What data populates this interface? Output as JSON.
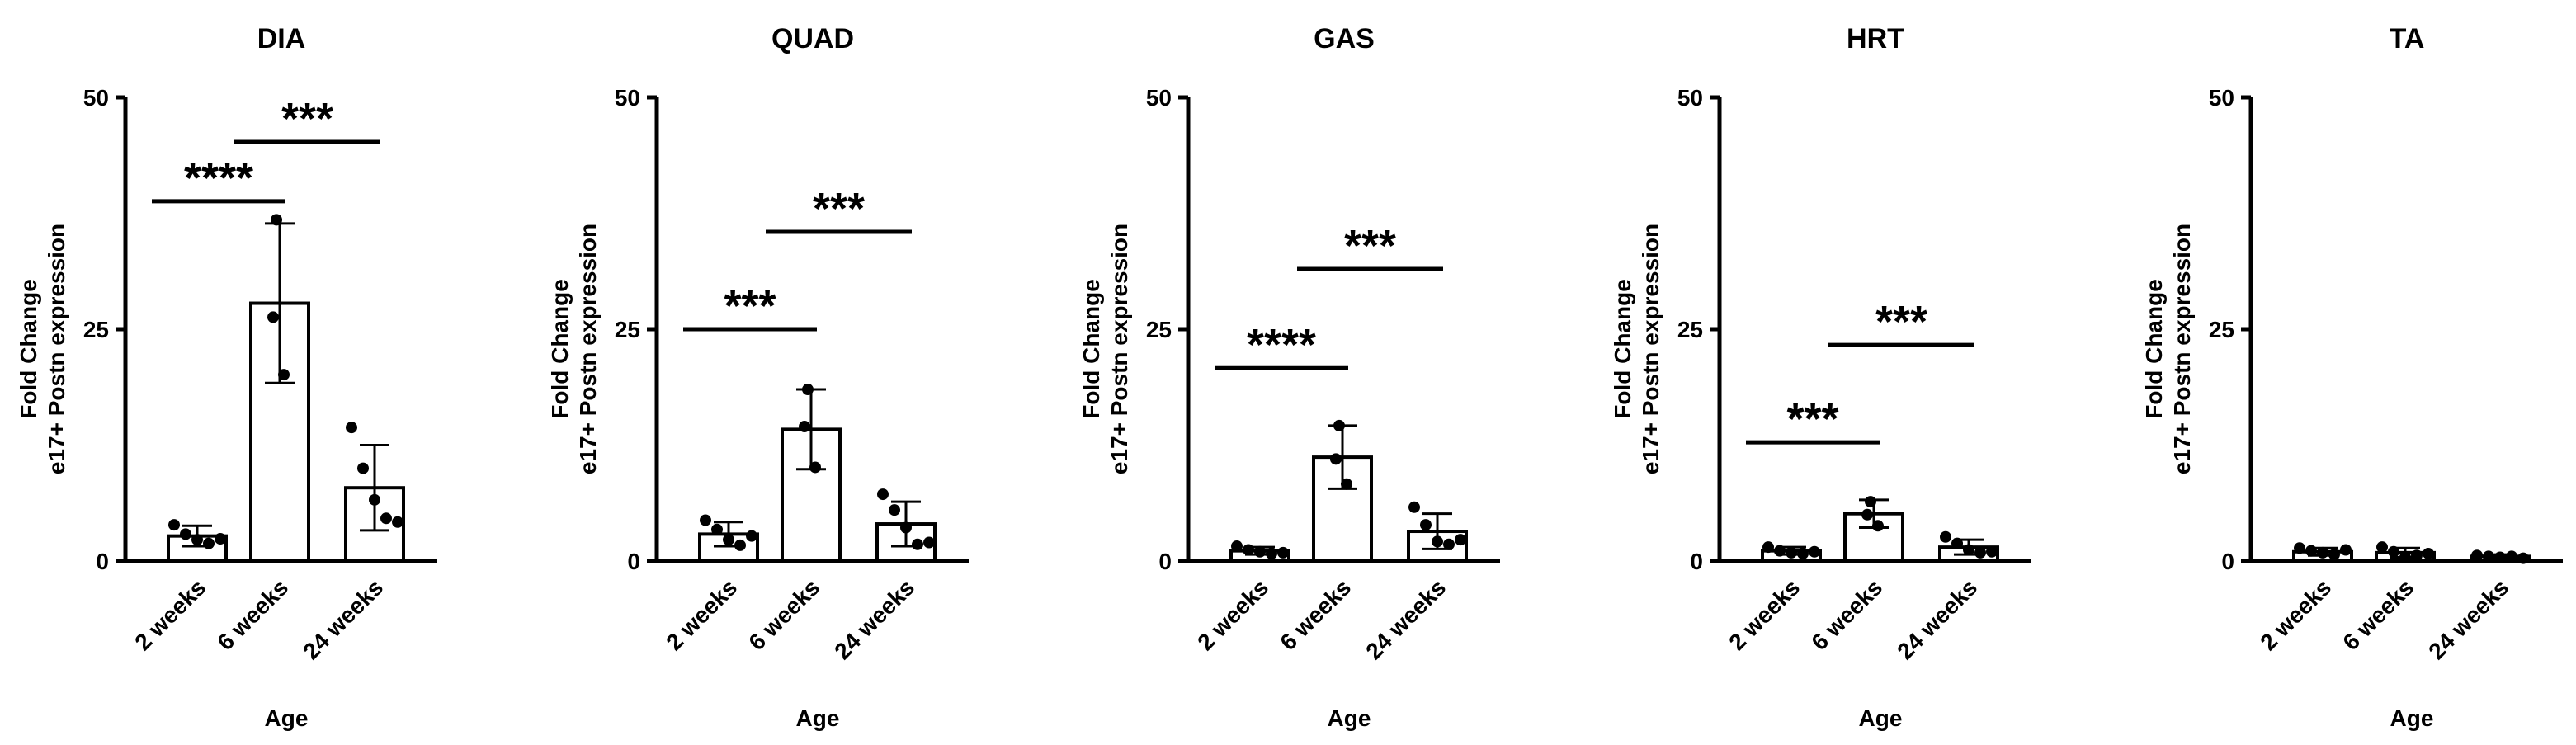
{
  "figure": {
    "common": {
      "ylabel_line1": "Fold Change",
      "ylabel_line2": "e17+ Postn expression",
      "xlabel": "Age",
      "categories": [
        "2 weeks",
        "6 weeks",
        "24 weeks"
      ],
      "ylim": [
        0,
        50
      ],
      "yticks": [
        "0",
        "25",
        "50"
      ]
    }
  },
  "chart_data": [
    {
      "type": "bar",
      "title": "DIA",
      "xlabel": "Age",
      "ylabel": "Fold Change e17+ Postn expression",
      "categories": [
        "2 weeks",
        "6 weeks",
        "24 weeks"
      ],
      "ylim": [
        0,
        50
      ],
      "values": [
        2.7,
        27.8,
        7.9
      ],
      "error_sd": [
        1.1,
        8.6,
        4.6
      ],
      "points": [
        [
          3.9,
          2.9,
          2.3,
          1.9,
          2.4
        ],
        [
          36.8,
          26.3,
          20.1
        ],
        [
          14.4,
          10.0,
          6.6,
          4.6,
          4.2
        ]
      ],
      "significance": [
        {
          "from": 0,
          "to": 1,
          "label": "****",
          "y": 38.8
        },
        {
          "from": 1,
          "to": 2,
          "label": "***",
          "y": 45.2
        }
      ]
    },
    {
      "type": "bar",
      "title": "QUAD",
      "xlabel": "Age",
      "ylabel": "Fold Change e17+ Postn expression",
      "categories": [
        "2 weeks",
        "6 weeks",
        "24 weeks"
      ],
      "ylim": [
        0,
        50
      ],
      "values": [
        2.9,
        14.2,
        4.0
      ],
      "error_sd": [
        1.3,
        4.3,
        2.4
      ],
      "points": [
        [
          4.4,
          3.4,
          2.3,
          1.7,
          2.7
        ],
        [
          18.5,
          14.5,
          10.1
        ],
        [
          7.2,
          5.5,
          3.6,
          1.8,
          2.0
        ]
      ],
      "significance": [
        {
          "from": 0,
          "to": 1,
          "label": "***",
          "y": 25.0
        },
        {
          "from": 1,
          "to": 2,
          "label": "***",
          "y": 35.5
        }
      ]
    },
    {
      "type": "bar",
      "title": "GAS",
      "xlabel": "Age",
      "ylabel": "Fold Change e17+ Postn expression",
      "categories": [
        "2 weeks",
        "6 weeks",
        "24 weeks"
      ],
      "ylim": [
        0,
        50
      ],
      "values": [
        1.1,
        11.2,
        3.2
      ],
      "error_sd": [
        0.4,
        3.4,
        1.9
      ],
      "points": [
        [
          1.6,
          1.2,
          1.0,
          0.8,
          0.9
        ],
        [
          14.6,
          11.0,
          8.3
        ],
        [
          5.8,
          3.9,
          2.1,
          1.8,
          2.3
        ]
      ],
      "significance": [
        {
          "from": 0,
          "to": 1,
          "label": "****",
          "y": 20.8
        },
        {
          "from": 1,
          "to": 2,
          "label": "***",
          "y": 31.5
        }
      ]
    },
    {
      "type": "bar",
      "title": "HRT",
      "xlabel": "Age",
      "ylabel": "Fold Change e17+ Postn expression",
      "categories": [
        "2 weeks",
        "6 weeks",
        "24 weeks"
      ],
      "ylim": [
        0,
        50
      ],
      "values": [
        1.1,
        5.1,
        1.5
      ],
      "error_sd": [
        0.4,
        1.5,
        0.8
      ],
      "points": [
        [
          1.5,
          1.1,
          0.9,
          0.8,
          1.0
        ],
        [
          6.4,
          5.0,
          3.8
        ],
        [
          2.6,
          1.9,
          1.2,
          0.9,
          1.0
        ]
      ],
      "significance": [
        {
          "from": 0,
          "to": 1,
          "label": "***",
          "y": 12.8
        },
        {
          "from": 1,
          "to": 2,
          "label": "***",
          "y": 23.3
        }
      ]
    },
    {
      "type": "bar",
      "title": "TA",
      "xlabel": "Age",
      "ylabel": "Fold Change e17+ Postn expression",
      "categories": [
        "2 weeks",
        "6 weeks",
        "24 weeks"
      ],
      "ylim": [
        0,
        50
      ],
      "values": [
        1.0,
        0.9,
        0.5
      ],
      "error_sd": [
        0.4,
        0.5,
        0.2
      ],
      "points": [
        [
          1.4,
          1.1,
          0.9,
          0.7,
          1.2
        ],
        [
          1.5,
          1.0,
          0.4,
          0.6,
          0.8
        ],
        [
          0.6,
          0.5,
          0.4,
          0.5,
          0.3
        ]
      ],
      "significance": []
    }
  ]
}
